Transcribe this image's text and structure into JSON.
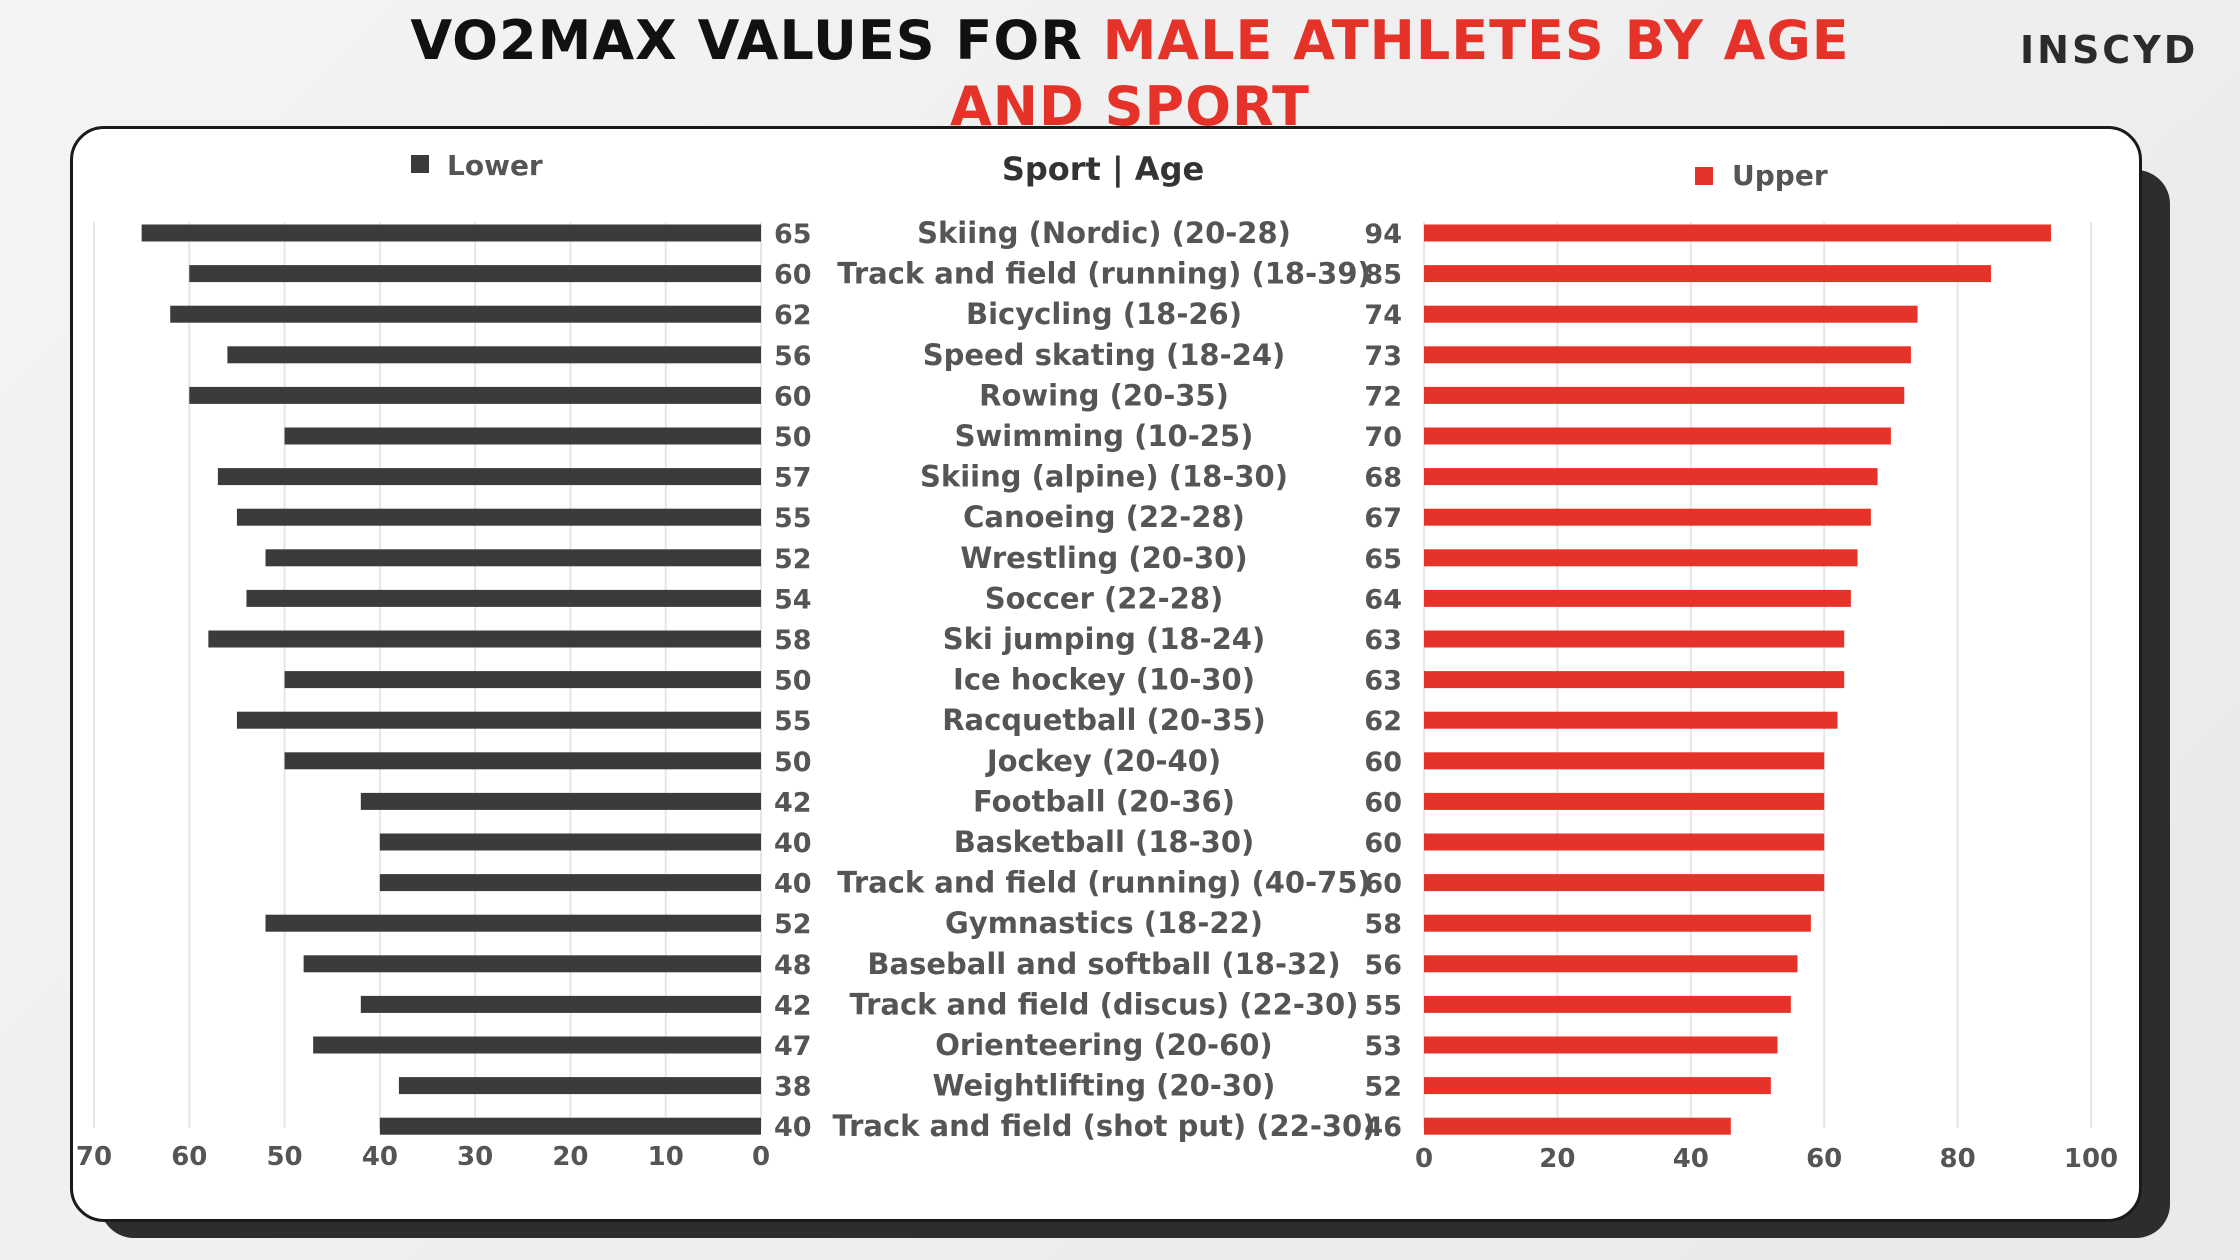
{
  "title": {
    "part1": "VO2MAX VALUES FOR ",
    "part2": "MALE ATHLETES BY AGE",
    "part3": "AND SPORT"
  },
  "logo": "INSCYD",
  "colors": {
    "lower": "#3b3b3b",
    "upper": "#e5332a",
    "accent": "#e5332a",
    "text": "#555555"
  },
  "chart_data": {
    "type": "bar",
    "orientation": "horizontal",
    "layout": "butterfly",
    "category_header": "Sport | Age",
    "categories": [
      "Skiing (Nordic) (20-28)",
      "Track and field (running) (18-39)",
      "Bicycling (18-26)",
      "Speed skating (18-24)",
      "Rowing (20-35)",
      "Swimming (10-25)",
      "Skiing (alpine) (18-30)",
      "Canoeing (22-28)",
      "Wrestling (20-30)",
      "Soccer (22-28)",
      "Ski jumping (18-24)",
      "Ice hockey (10-30)",
      "Racquetball (20-35)",
      "Jockey (20-40)",
      "Football (20-36)",
      "Basketball (18-30)",
      "Track and field (running) (40-75)",
      "Gymnastics (18-22)",
      "Baseball and softball (18-32)",
      "Track and field (discus) (22-30)",
      "Orienteering (20-60)",
      "Weightlifting (20-30)",
      "Track and field (shot put) (22-30)"
    ],
    "series": [
      {
        "name": "Lower",
        "side": "left",
        "values": [
          65,
          60,
          62,
          56,
          60,
          50,
          57,
          55,
          52,
          54,
          58,
          50,
          55,
          50,
          42,
          40,
          40,
          52,
          48,
          42,
          47,
          38,
          40
        ],
        "axis_range": [
          0,
          70
        ],
        "ticks": [
          "70",
          "60",
          "50",
          "40",
          "30",
          "20",
          "10",
          "0"
        ]
      },
      {
        "name": "Upper",
        "side": "right",
        "values": [
          94,
          85,
          74,
          73,
          72,
          70,
          68,
          67,
          65,
          64,
          63,
          63,
          62,
          60,
          60,
          60,
          60,
          58,
          56,
          55,
          53,
          52,
          46
        ],
        "axis_range": [
          0,
          100
        ],
        "ticks": [
          "0",
          "20",
          "40",
          "60",
          "80",
          "100"
        ]
      }
    ],
    "legend": {
      "lower": "top-left",
      "upper": "top-right"
    },
    "grid": false
  }
}
